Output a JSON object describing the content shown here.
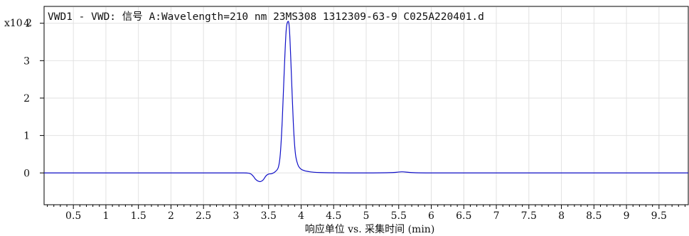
{
  "chart_data": {
    "type": "line",
    "title": "VWD1 - VWD: 信号 A:Wavelength=210 nm 23MS308 1312309-63-9 C025A220401.d",
    "xlabel": "响应单位 vs. 采集时间 (min)",
    "ylabel": "",
    "y_multiplier": "x10 2",
    "xlim": [
      0.05,
      9.95
    ],
    "ylim": [
      -0.85,
      4.45
    ],
    "x_ticks": [
      0.5,
      1,
      1.5,
      2,
      2.5,
      3,
      3.5,
      4,
      4.5,
      5,
      5.5,
      6,
      6.5,
      7,
      7.5,
      8,
      8.5,
      9,
      9.5
    ],
    "x_tick_labels": [
      "0.5",
      "1",
      "1.5",
      "2",
      "2.5",
      "3",
      "3.5",
      "4",
      "4.5",
      "5",
      "5.5",
      "6",
      "6.5",
      "7",
      "7.5",
      "8",
      "8.5",
      "9",
      "9.5"
    ],
    "y_ticks": [
      0,
      1,
      2,
      3,
      4
    ],
    "y_tick_labels": [
      "0",
      "1",
      "2",
      "3",
      "4"
    ],
    "grid": true,
    "line_color": "#1010c8",
    "series": [
      {
        "x": [
          0.05,
          1.0,
          2.0,
          3.0,
          3.2,
          3.26,
          3.3,
          3.34,
          3.38,
          3.42,
          3.46,
          3.5,
          3.55,
          3.6,
          3.65,
          3.68,
          3.71,
          3.74,
          3.77,
          3.8,
          3.82,
          3.84,
          3.86,
          3.88,
          3.9,
          3.92,
          3.95,
          3.98,
          4.02,
          4.1,
          4.3,
          5.0,
          5.4,
          5.55,
          5.7,
          6.0,
          7.0,
          8.0,
          9.0,
          9.95
        ],
        "y": [
          0.0,
          0.0,
          0.0,
          0.0,
          -0.01,
          -0.08,
          -0.17,
          -0.22,
          -0.23,
          -0.18,
          -0.08,
          -0.03,
          -0.02,
          0.03,
          0.15,
          0.5,
          1.4,
          2.7,
          3.8,
          4.05,
          3.85,
          3.1,
          2.2,
          1.35,
          0.75,
          0.42,
          0.22,
          0.13,
          0.08,
          0.04,
          0.01,
          0.0,
          0.01,
          0.03,
          0.01,
          0.0,
          0.0,
          0.0,
          0.0,
          0.0
        ]
      }
    ]
  }
}
